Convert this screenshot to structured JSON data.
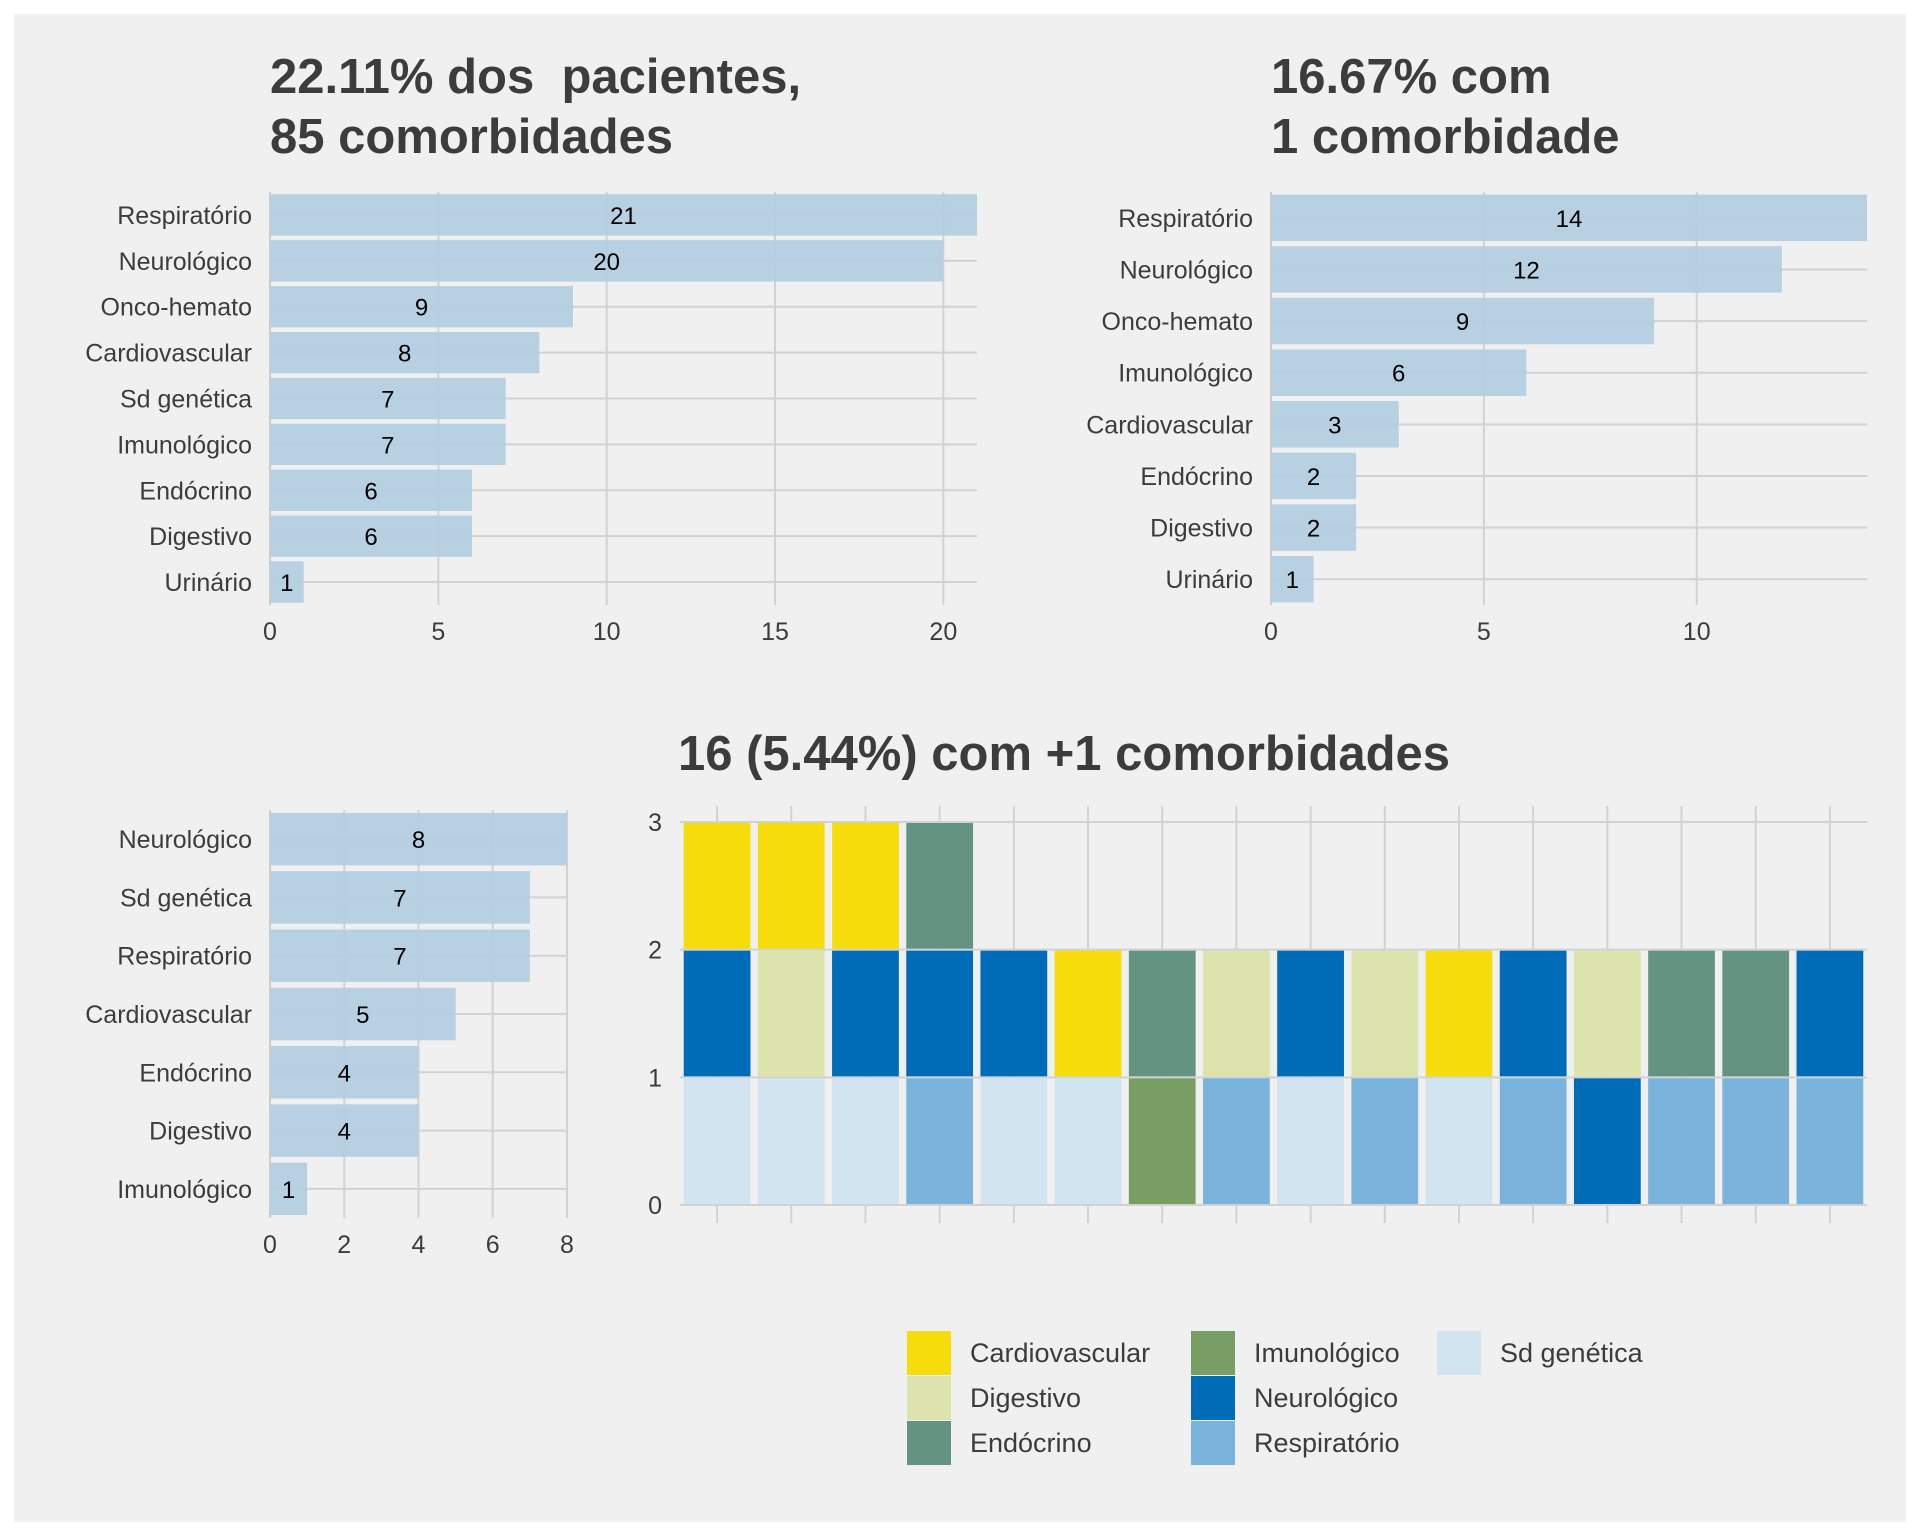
{
  "colors": {
    "bar_fill": "#b3cde0",
    "grid": "#d2d2d2",
    "axis_line": "#cccccc",
    "text": "#3c3c3c",
    "panel_bg": "#f0f0f0"
  },
  "chart_data": [
    {
      "type": "bar",
      "orientation": "horizontal",
      "title": "22.11% dos  pacientes,\n85 comorbidades",
      "categories": [
        "Respiratório",
        "Neurológico",
        "Onco-hemato",
        "Cardiovascular",
        "Sd genética",
        "Imunológico",
        "Endócrino",
        "Digestivo",
        "Urinário"
      ],
      "values": [
        21,
        20,
        9,
        8,
        7,
        7,
        6,
        6,
        1
      ],
      "xlim": [
        0,
        21
      ],
      "xticks": [
        0,
        5,
        10,
        15,
        20
      ],
      "grid": true
    },
    {
      "type": "bar",
      "orientation": "horizontal",
      "title": "16.67% com\n1 comorbidade",
      "categories": [
        "Respiratório",
        "Neurológico",
        "Onco-hemato",
        "Imunológico",
        "Cardiovascular",
        "Endócrino",
        "Digestivo",
        "Urinário"
      ],
      "values": [
        14,
        12,
        9,
        6,
        3,
        2,
        2,
        1
      ],
      "xlim": [
        0,
        14
      ],
      "xticks": [
        0,
        5,
        10
      ],
      "grid": true
    },
    {
      "type": "bar",
      "orientation": "horizontal",
      "title": "",
      "categories": [
        "Neurológico",
        "Sd genética",
        "Respiratório",
        "Cardiovascular",
        "Endócrino",
        "Digestivo",
        "Imunológico"
      ],
      "values": [
        8,
        7,
        7,
        5,
        4,
        4,
        1
      ],
      "xlim": [
        0,
        8
      ],
      "xticks": [
        0,
        2,
        4,
        6,
        8
      ],
      "grid": true
    },
    {
      "type": "bar",
      "stacked": true,
      "title": "16 (5.44%) com +1 comorbidades",
      "ylim": [
        0,
        3
      ],
      "yticks": [
        0,
        1,
        2,
        3
      ],
      "grid": true,
      "legend_position": "bottom",
      "legend": [
        {
          "name": "Cardiovascular",
          "color": "#f7dc0b"
        },
        {
          "name": "Digestivo",
          "color": "#dde3ad"
        },
        {
          "name": "Endócrino",
          "color": "#649481"
        },
        {
          "name": "Imunológico",
          "color": "#789e63"
        },
        {
          "name": "Neurológico",
          "color": "#006cb7"
        },
        {
          "name": "Respiratório",
          "color": "#7ab4dc"
        },
        {
          "name": "Sd genética",
          "color": "#d3e4f1"
        }
      ],
      "stacks": [
        [
          "Sd genética",
          "Neurológico",
          "Cardiovascular"
        ],
        [
          "Sd genética",
          "Digestivo",
          "Cardiovascular"
        ],
        [
          "Sd genética",
          "Neurológico",
          "Cardiovascular"
        ],
        [
          "Respiratório",
          "Neurológico",
          "Endócrino"
        ],
        [
          "Sd genética",
          "Neurológico"
        ],
        [
          "Sd genética",
          "Cardiovascular"
        ],
        [
          "Imunológico",
          "Endócrino"
        ],
        [
          "Respiratório",
          "Digestivo"
        ],
        [
          "Sd genética",
          "Neurológico"
        ],
        [
          "Respiratório",
          "Digestivo"
        ],
        [
          "Sd genética",
          "Cardiovascular"
        ],
        [
          "Respiratório",
          "Neurológico"
        ],
        [
          "Neurológico",
          "Digestivo"
        ],
        [
          "Respiratório",
          "Endócrino"
        ],
        [
          "Respiratório",
          "Endócrino"
        ],
        [
          "Respiratório",
          "Neurológico"
        ]
      ]
    }
  ]
}
